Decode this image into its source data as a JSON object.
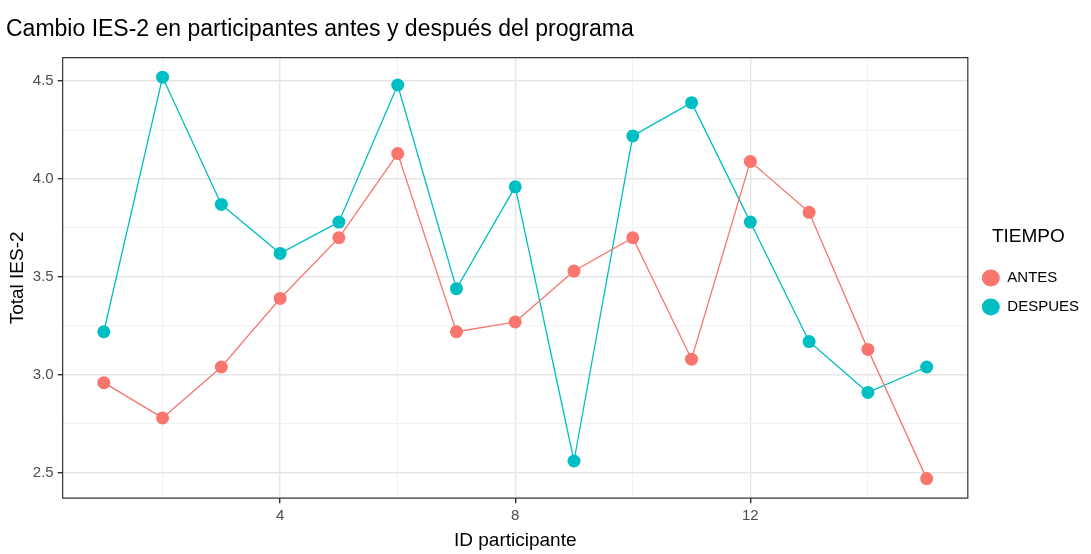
{
  "chart_data": {
    "type": "line",
    "title": "Cambio IES-2 en participantes antes y después del programa",
    "xlabel": "ID participante",
    "ylabel": "Total IES-2",
    "legend_title": "TIEMPO",
    "x": [
      1,
      2,
      3,
      4,
      5,
      6,
      7,
      8,
      9,
      10,
      11,
      12,
      13,
      14,
      15
    ],
    "series": [
      {
        "name": "ANTES",
        "color": "#f8766d",
        "values": [
          2.96,
          2.78,
          3.04,
          3.39,
          3.7,
          4.13,
          3.22,
          3.27,
          3.53,
          3.7,
          3.08,
          4.09,
          3.83,
          3.13,
          2.47
        ]
      },
      {
        "name": "DESPUES",
        "color": "#00bfc4",
        "values": [
          3.22,
          4.52,
          3.87,
          3.62,
          3.78,
          4.48,
          3.44,
          3.96,
          2.56,
          4.22,
          4.39,
          3.78,
          3.17,
          2.91,
          3.04
        ]
      }
    ],
    "xlim": [
      0.3,
      15.7
    ],
    "ylim": [
      2.37,
      4.62
    ],
    "xticks": [
      {
        "value": 2,
        "label": null
      },
      4,
      {
        "value": 6,
        "label": null
      },
      8,
      {
        "value": 10,
        "label": null
      },
      12,
      {
        "value": 14,
        "label": null
      }
    ],
    "yticks": [
      2.5,
      {
        "value": 2.75,
        "label": null
      },
      {
        "value": 3,
        "label": "3.0"
      },
      {
        "value": 3.25,
        "label": null
      },
      3.5,
      {
        "value": 3.75,
        "label": null
      },
      {
        "value": 4,
        "label": "4.0"
      },
      {
        "value": 4.25,
        "label": null
      },
      4.5
    ],
    "grid": true,
    "legend": "right",
    "marker": "circle",
    "line_style": "solid"
  }
}
